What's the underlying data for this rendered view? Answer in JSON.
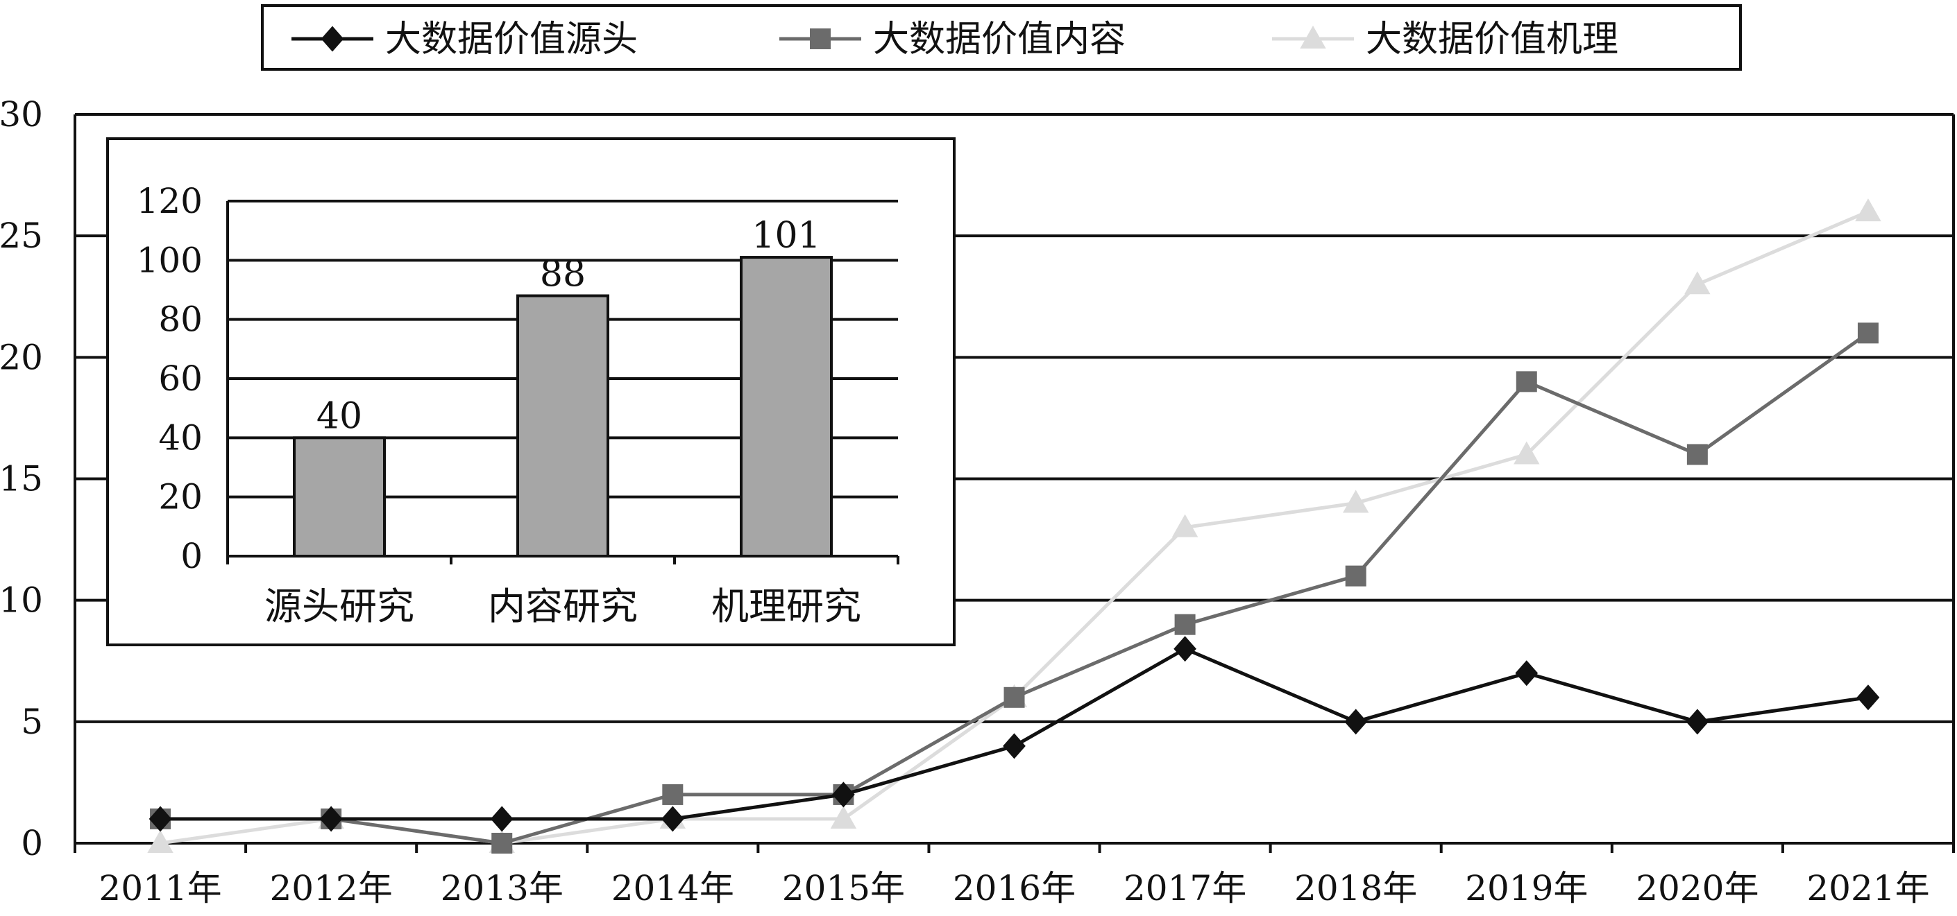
{
  "chart_data": [
    {
      "type": "line",
      "categories": [
        "2011年",
        "2012年",
        "2013年",
        "2014年",
        "2015年",
        "2016年",
        "2017年",
        "2018年",
        "2019年",
        "2020年",
        "2021年"
      ],
      "series": [
        {
          "name": "大数据价值源头",
          "marker": "diamond",
          "color": "#111111",
          "values": [
            1,
            1,
            1,
            1,
            2,
            4,
            8,
            5,
            7,
            5,
            6
          ]
        },
        {
          "name": "大数据价值内容",
          "marker": "square",
          "color": "#6b6b6b",
          "values": [
            1,
            1,
            0,
            2,
            2,
            6,
            9,
            11,
            19,
            16,
            21
          ]
        },
        {
          "name": "大数据价值机理",
          "marker": "triangle",
          "color": "#dcdcdc",
          "values": [
            0,
            1,
            0,
            1,
            1,
            6,
            13,
            14,
            16,
            23,
            26
          ]
        }
      ],
      "yticks": [
        "0",
        "5",
        "10",
        "15",
        "20",
        "25",
        "30"
      ],
      "ylim": [
        0,
        30
      ],
      "grid": true,
      "legend_position": "top"
    },
    {
      "type": "bar",
      "categories": [
        "源头研究",
        "内容研究",
        "机理研究"
      ],
      "values": [
        40,
        88,
        101
      ],
      "value_labels": [
        "40",
        "88",
        "101"
      ],
      "yticks": [
        "0",
        "20",
        "40",
        "60",
        "80",
        "100",
        "120"
      ],
      "ylim": [
        0,
        120
      ],
      "bar_color": "#a6a6a6",
      "grid": true
    }
  ]
}
